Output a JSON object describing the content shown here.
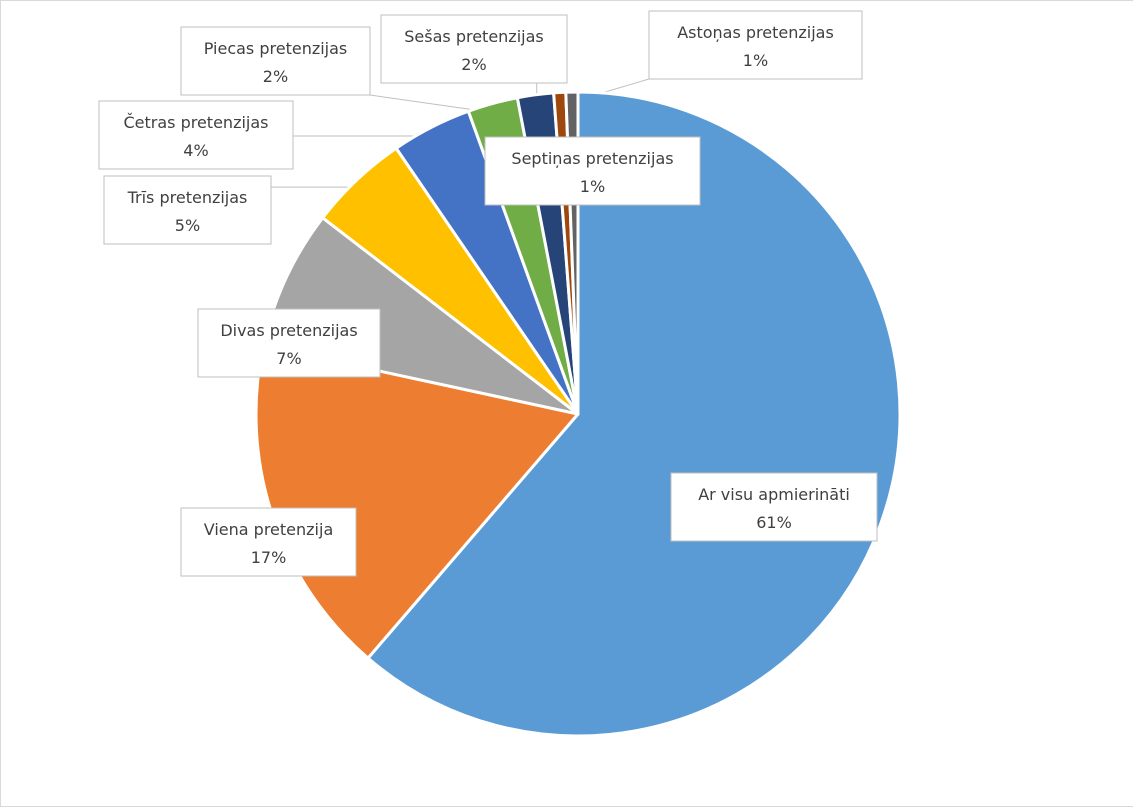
{
  "chart_data": {
    "type": "pie",
    "title": "",
    "slices": [
      {
        "label": "Ar visu apmierināti",
        "value": 61.0,
        "pct_label": "61%",
        "color": "#5B9BD5"
      },
      {
        "label": "Viena pretenzija",
        "value": 17.0,
        "pct_label": "17%",
        "color": "#ED7D31"
      },
      {
        "label": "Divas pretenzijas",
        "value": 7.0,
        "pct_label": "7%",
        "color": "#A5A5A5"
      },
      {
        "label": "Trīs pretenzijas",
        "value": 5.0,
        "pct_label": "5%",
        "color": "#FFC000"
      },
      {
        "label": "Četras pretenzijas",
        "value": 4.0,
        "pct_label": "4%",
        "color": "#4472C4"
      },
      {
        "label": "Piecas pretenzijas",
        "value": 2.5,
        "pct_label": "2%",
        "color": "#70AD47"
      },
      {
        "label": "Sešas pretenzijas",
        "value": 1.8,
        "pct_label": "2%",
        "color": "#264478"
      },
      {
        "label": "Septiņas pretenzijas",
        "value": 0.6,
        "pct_label": "1%",
        "color": "#9E480E"
      },
      {
        "label": "Astoņas pretenzijas",
        "value": 0.6,
        "pct_label": "1%",
        "color": "#636363"
      }
    ],
    "legend": "none",
    "data_labels": "callouts"
  }
}
